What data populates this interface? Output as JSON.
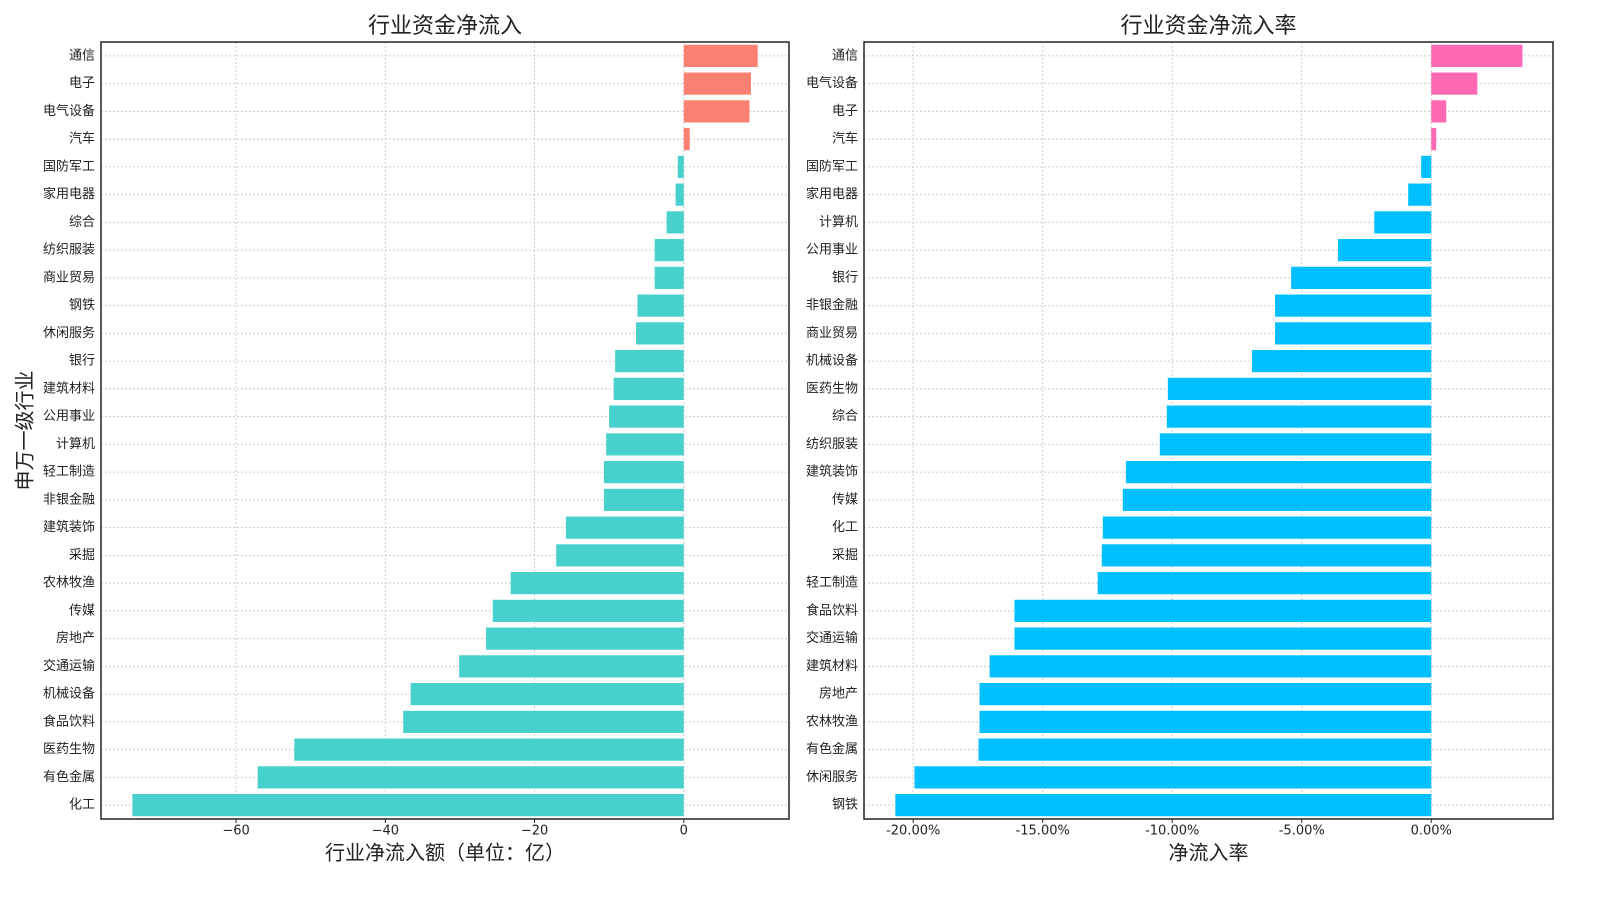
{
  "chart_data": [
    {
      "type": "barh",
      "title": "行业资金净流入",
      "x_label": "行业净流入额（单位：亿）",
      "y_label": "申万一级行业",
      "categories": [
        "通信",
        "电子",
        "电气设备",
        "汽车",
        "国防军工",
        "家用电器",
        "综合",
        "纺织服装",
        "商业贸易",
        "钢铁",
        "休闲服务",
        "银行",
        "建筑材料",
        "公用事业",
        "计算机",
        "轻工制造",
        "非银金融",
        "建筑装饰",
        "采掘",
        "农林牧渔",
        "传媒",
        "房地产",
        "交通运输",
        "机械设备",
        "食品饮料",
        "医药生物",
        "有色金属",
        "化工"
      ],
      "values": [
        9.9,
        9.0,
        8.8,
        0.8,
        -0.8,
        -1.1,
        -2.3,
        -3.9,
        -3.9,
        -6.2,
        -6.4,
        -9.2,
        -9.4,
        -10.0,
        -10.4,
        -10.7,
        -10.7,
        -15.8,
        -17.1,
        -23.2,
        -25.6,
        -26.5,
        -30.1,
        -36.6,
        -37.6,
        -52.2,
        -57.1,
        -73.9
      ],
      "positive_color": "#fa8072",
      "negative_color": "#48d1cc",
      "xlim": [
        -78.1,
        14.1
      ],
      "xticks": [
        {
          "value": -60,
          "label": "−60"
        },
        {
          "value": -40,
          "label": "−40"
        },
        {
          "value": -20,
          "label": "−20"
        },
        0
      ],
      "grid": true
    },
    {
      "type": "barh",
      "title": "行业资金净流入率",
      "x_label": "净流入率",
      "categories": [
        "通信",
        "电气设备",
        "电子",
        "汽车",
        "国防军工",
        "家用电器",
        "计算机",
        "公用事业",
        "银行",
        "非银金融",
        "商业贸易",
        "机械设备",
        "医药生物",
        "综合",
        "纺织服装",
        "建筑装饰",
        "传媒",
        "化工",
        "采掘",
        "轻工制造",
        "食品饮料",
        "交通运输",
        "建筑材料",
        "房地产",
        "农林牧渔",
        "有色金属",
        "休闲服务",
        "钢铁"
      ],
      "values": [
        3.52,
        1.78,
        0.58,
        0.19,
        -0.39,
        -0.89,
        -2.2,
        -3.6,
        -5.41,
        -6.03,
        -6.03,
        -6.92,
        -10.17,
        -10.21,
        -10.48,
        -11.79,
        -11.91,
        -12.68,
        -12.72,
        -12.88,
        -16.09,
        -16.09,
        -17.05,
        -17.44,
        -17.44,
        -17.48,
        -19.95,
        -20.69
      ],
      "positive_color": "#ff69b4",
      "negative_color": "#00bfff",
      "xlim": [
        -21.9,
        4.7
      ],
      "xticks": [
        {
          "value": -20,
          "label": "-20.00%"
        },
        {
          "value": -15,
          "label": "-15.00%"
        },
        {
          "value": -10,
          "label": "-10.00%"
        },
        {
          "value": -5,
          "label": "-5.00%"
        },
        {
          "value": 0,
          "label": "0.00%"
        }
      ],
      "grid": true
    }
  ]
}
